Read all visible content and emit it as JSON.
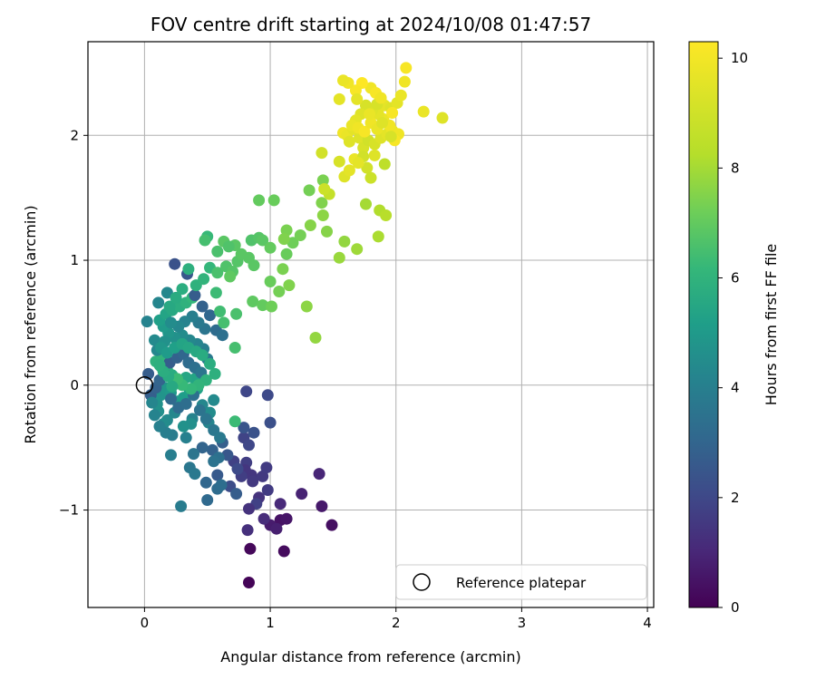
{
  "chart_data": {
    "type": "scatter",
    "title": "FOV centre drift starting at 2024/10/08 01:47:57",
    "xlabel": "Angular distance from reference (arcmin)",
    "ylabel": "Rotation from reference (arcmin)",
    "xlim": [
      -0.45,
      4.05
    ],
    "ylim": [
      -1.78,
      2.75
    ],
    "xticks": [
      0,
      1,
      2,
      3,
      4
    ],
    "yticks": [
      -1,
      0,
      1,
      2
    ],
    "grid": true,
    "legend": {
      "position": "bottom-right",
      "entries": [
        "Reference platepar"
      ]
    },
    "reference_point": {
      "x": 0,
      "y": 0
    },
    "colorbar": {
      "label": "Hours from first FF file",
      "colormap": "viridis",
      "range": [
        0,
        10.3
      ],
      "ticks": [
        0,
        2,
        4,
        6,
        8,
        10
      ]
    },
    "points": [
      [
        0.83,
        -1.58,
        0.1
      ],
      [
        0.84,
        -1.31,
        0.2
      ],
      [
        1.11,
        -1.33,
        0.3
      ],
      [
        1.49,
        -1.12,
        0.4
      ],
      [
        1.08,
        -1.08,
        0.5
      ],
      [
        1.13,
        -1.07,
        0.6
      ],
      [
        1.41,
        -0.97,
        0.7
      ],
      [
        1.0,
        -1.12,
        0.8
      ],
      [
        1.05,
        -1.15,
        0.9
      ],
      [
        1.25,
        -0.87,
        1.0
      ],
      [
        1.39,
        -0.71,
        1.1
      ],
      [
        1.08,
        -0.95,
        1.2
      ],
      [
        0.95,
        -1.07,
        1.3
      ],
      [
        0.82,
        -1.16,
        1.4
      ],
      [
        0.91,
        -0.9,
        1.5
      ],
      [
        0.85,
        -0.72,
        1.6
      ],
      [
        0.94,
        -0.73,
        1.7
      ],
      [
        0.98,
        -0.84,
        1.8
      ],
      [
        0.81,
        -0.62,
        1.9
      ],
      [
        0.89,
        -0.95,
        2.0
      ],
      [
        0.83,
        -0.99,
        1.5
      ],
      [
        0.8,
        -0.68,
        1.6
      ],
      [
        0.86,
        -0.77,
        1.7
      ],
      [
        0.97,
        -0.66,
        1.8
      ],
      [
        0.77,
        -0.73,
        1.9
      ],
      [
        0.71,
        -0.61,
        2.0
      ],
      [
        0.79,
        -0.42,
        2.1
      ],
      [
        0.83,
        -0.48,
        2.2
      ],
      [
        0.74,
        -0.67,
        2.3
      ],
      [
        0.68,
        -0.81,
        2.4
      ],
      [
        0.81,
        -0.05,
        2.2
      ],
      [
        0.98,
        -0.08,
        2.3
      ],
      [
        1.0,
        -0.3,
        2.5
      ],
      [
        0.87,
        -0.38,
        2.6
      ],
      [
        0.79,
        -0.34,
        2.7
      ],
      [
        0.66,
        -0.56,
        2.8
      ],
      [
        0.58,
        -0.72,
        2.9
      ],
      [
        0.73,
        -0.87,
        3.0
      ],
      [
        0.62,
        -0.46,
        3.1
      ],
      [
        0.54,
        -0.52,
        3.2
      ],
      [
        0.46,
        -0.5,
        3.3
      ],
      [
        0.49,
        -0.78,
        3.4
      ],
      [
        0.5,
        -0.92,
        3.5
      ],
      [
        0.58,
        -0.83,
        3.6
      ],
      [
        0.61,
        -0.8,
        3.7
      ],
      [
        0.59,
        -0.58,
        3.8
      ],
      [
        0.55,
        -0.61,
        3.9
      ],
      [
        0.39,
        -0.55,
        4.0
      ],
      [
        0.36,
        -0.66,
        4.1
      ],
      [
        0.4,
        -0.71,
        4.2
      ],
      [
        0.29,
        -0.97,
        4.3
      ],
      [
        0.21,
        -0.56,
        4.4
      ],
      [
        0.33,
        -0.42,
        4.5
      ],
      [
        0.38,
        -0.27,
        4.6
      ],
      [
        0.51,
        -0.3,
        4.7
      ],
      [
        0.46,
        -0.16,
        4.8
      ],
      [
        0.55,
        -0.12,
        4.9
      ],
      [
        0.52,
        -0.22,
        5.0
      ],
      [
        0.37,
        -0.31,
        5.1
      ],
      [
        0.31,
        -0.33,
        5.2
      ],
      [
        0.24,
        -0.22,
        4.8
      ],
      [
        0.18,
        -0.28,
        4.9
      ],
      [
        0.15,
        -0.31,
        5.0
      ],
      [
        0.11,
        -0.21,
        5.1
      ],
      [
        0.1,
        -0.15,
        5.2
      ],
      [
        0.13,
        -0.08,
        5.3
      ],
      [
        0.16,
        -0.02,
        5.4
      ],
      [
        0.21,
        -0.06,
        5.5
      ],
      [
        0.26,
        -0.13,
        5.6
      ],
      [
        0.31,
        -0.1,
        5.7
      ],
      [
        0.36,
        -0.05,
        5.8
      ],
      [
        0.42,
        -0.03,
        5.9
      ],
      [
        0.4,
        0.05,
        6.0
      ],
      [
        0.33,
        0.06,
        6.1
      ],
      [
        0.28,
        0.02,
        6.2
      ],
      [
        0.22,
        0.08,
        6.3
      ],
      [
        0.18,
        0.12,
        6.4
      ],
      [
        0.13,
        0.15,
        6.5
      ],
      [
        0.09,
        0.19,
        6.6
      ],
      [
        0.14,
        0.22,
        6.7
      ],
      [
        0.2,
        0.18,
        3.0
      ],
      [
        0.26,
        0.22,
        3.2
      ],
      [
        0.31,
        0.25,
        3.4
      ],
      [
        0.35,
        0.18,
        3.6
      ],
      [
        0.4,
        0.14,
        3.8
      ],
      [
        0.45,
        0.1,
        4.0
      ],
      [
        0.5,
        0.21,
        4.2
      ],
      [
        0.47,
        0.29,
        4.4
      ],
      [
        0.42,
        0.33,
        4.6
      ],
      [
        0.36,
        0.36,
        4.8
      ],
      [
        0.3,
        0.4,
        5.0
      ],
      [
        0.24,
        0.38,
        5.2
      ],
      [
        0.19,
        0.42,
        5.4
      ],
      [
        0.15,
        0.47,
        5.6
      ],
      [
        0.12,
        0.52,
        5.8
      ],
      [
        0.17,
        0.57,
        6.0
      ],
      [
        0.22,
        0.6,
        6.2
      ],
      [
        0.28,
        0.63,
        6.4
      ],
      [
        0.33,
        0.66,
        6.6
      ],
      [
        0.38,
        0.7,
        6.8
      ],
      [
        0.03,
        0.09,
        3.0
      ],
      [
        0.05,
        -0.08,
        3.1
      ],
      [
        0.09,
        -0.02,
        3.2
      ],
      [
        0.12,
        0.04,
        3.3
      ],
      [
        0.16,
        0.09,
        3.4
      ],
      [
        0.21,
        -0.11,
        3.5
      ],
      [
        0.27,
        -0.18,
        3.6
      ],
      [
        0.33,
        -0.15,
        3.7
      ],
      [
        0.39,
        -0.08,
        3.8
      ],
      [
        0.44,
        -0.2,
        3.9
      ],
      [
        0.49,
        -0.27,
        4.0
      ],
      [
        0.55,
        -0.36,
        4.1
      ],
      [
        0.6,
        -0.42,
        4.2
      ],
      [
        0.22,
        -0.4,
        4.3
      ],
      [
        0.17,
        -0.38,
        4.4
      ],
      [
        0.12,
        -0.33,
        4.5
      ],
      [
        0.08,
        -0.24,
        4.6
      ],
      [
        0.06,
        -0.14,
        4.7
      ],
      [
        0.1,
        0.28,
        4.8
      ],
      [
        0.08,
        0.36,
        4.9
      ],
      [
        0.02,
        0.51,
        4.6
      ],
      [
        0.11,
        0.66,
        4.7
      ],
      [
        0.18,
        0.74,
        4.8
      ],
      [
        0.24,
        0.97,
        2.6
      ],
      [
        0.34,
        0.89,
        2.8
      ],
      [
        0.4,
        0.72,
        3.0
      ],
      [
        0.46,
        0.63,
        3.2
      ],
      [
        0.52,
        0.56,
        3.4
      ],
      [
        0.57,
        0.44,
        3.6
      ],
      [
        0.62,
        0.4,
        3.8
      ],
      [
        0.48,
        0.45,
        4.0
      ],
      [
        0.43,
        0.5,
        4.2
      ],
      [
        0.38,
        0.55,
        4.4
      ],
      [
        0.32,
        0.51,
        4.6
      ],
      [
        0.27,
        0.47,
        4.8
      ],
      [
        0.21,
        0.5,
        5.0
      ],
      [
        0.16,
        0.35,
        5.2
      ],
      [
        0.13,
        0.3,
        5.4
      ],
      [
        0.18,
        0.26,
        5.6
      ],
      [
        0.24,
        0.3,
        5.8
      ],
      [
        0.3,
        0.33,
        6.0
      ],
      [
        0.35,
        0.3,
        6.1
      ],
      [
        0.41,
        0.27,
        6.2
      ],
      [
        0.46,
        0.24,
        6.3
      ],
      [
        0.52,
        0.17,
        6.4
      ],
      [
        0.56,
        0.09,
        6.5
      ],
      [
        0.49,
        0.04,
        6.6
      ],
      [
        0.43,
        0.0,
        6.7
      ],
      [
        0.37,
        -0.03,
        6.8
      ],
      [
        0.3,
        0.0,
        6.9
      ],
      [
        0.26,
        0.05,
        7.0
      ],
      [
        0.22,
        -0.01,
        6.2
      ],
      [
        0.19,
        0.07,
        6.3
      ],
      [
        0.15,
        0.11,
        6.4
      ],
      [
        0.12,
        0.16,
        6.5
      ],
      [
        0.2,
        0.63,
        6.2
      ],
      [
        0.25,
        0.7,
        6.3
      ],
      [
        0.3,
        0.77,
        6.4
      ],
      [
        0.35,
        0.93,
        6.5
      ],
      [
        0.41,
        0.8,
        6.6
      ],
      [
        0.47,
        0.85,
        6.7
      ],
      [
        0.52,
        0.94,
        6.8
      ],
      [
        0.5,
        1.19,
        6.9
      ],
      [
        0.57,
        0.74,
        7.0
      ],
      [
        0.6,
        0.59,
        7.1
      ],
      [
        0.63,
        0.5,
        7.2
      ],
      [
        0.58,
        0.9,
        7.3
      ],
      [
        0.65,
        0.95,
        7.4
      ],
      [
        0.7,
        0.91,
        7.5
      ],
      [
        0.74,
        0.99,
        7.5
      ],
      [
        0.77,
        1.05,
        7.6
      ],
      [
        0.83,
        1.02,
        7.6
      ],
      [
        0.87,
        0.96,
        7.6
      ],
      [
        0.72,
        1.12,
        7.6
      ],
      [
        0.63,
        1.15,
        7.6
      ],
      [
        0.67,
        1.11,
        7.4
      ],
      [
        0.68,
        0.87,
        7.7
      ],
      [
        0.73,
        0.57,
        7.3
      ],
      [
        0.72,
        0.3,
        7.2
      ],
      [
        0.72,
        -0.29,
        7.0
      ],
      [
        0.48,
        1.16,
        7.2
      ],
      [
        0.58,
        1.07,
        7.3
      ],
      [
        0.85,
        1.16,
        7.4
      ],
      [
        0.91,
        1.18,
        7.5
      ],
      [
        0.94,
        1.16,
        7.6
      ],
      [
        0.86,
        0.67,
        7.7
      ],
      [
        0.94,
        0.64,
        7.8
      ],
      [
        1.0,
        0.83,
        7.9
      ],
      [
        1.01,
        0.63,
        8.0
      ],
      [
        1.07,
        0.75,
        8.1
      ],
      [
        1.1,
        0.93,
        8.2
      ],
      [
        1.15,
        0.8,
        8.3
      ],
      [
        1.0,
        1.1,
        7.8
      ],
      [
        1.13,
        1.05,
        7.9
      ],
      [
        1.18,
        1.14,
        8.0
      ],
      [
        1.24,
        1.2,
        8.1
      ],
      [
        1.13,
        1.24,
        8.2
      ],
      [
        1.11,
        1.17,
        8.3
      ],
      [
        1.32,
        1.28,
        8.4
      ],
      [
        1.29,
        0.63,
        8.5
      ],
      [
        1.36,
        0.38,
        8.6
      ],
      [
        0.91,
        1.48,
        7.8
      ],
      [
        1.03,
        1.48,
        7.9
      ],
      [
        1.31,
        1.56,
        8.1
      ],
      [
        1.42,
        1.64,
        8.2
      ],
      [
        1.41,
        1.46,
        8.3
      ],
      [
        1.45,
        1.23,
        8.4
      ],
      [
        1.42,
        1.36,
        8.5
      ],
      [
        1.59,
        1.15,
        8.6
      ],
      [
        1.55,
        1.02,
        8.7
      ],
      [
        1.69,
        1.09,
        8.8
      ],
      [
        1.76,
        1.45,
        8.9
      ],
      [
        1.86,
        1.19,
        9.0
      ],
      [
        1.87,
        1.4,
        9.1
      ],
      [
        1.92,
        1.36,
        9.2
      ],
      [
        1.91,
        1.77,
        9.3
      ],
      [
        1.47,
        1.53,
        9.4
      ],
      [
        1.43,
        1.57,
        9.5
      ],
      [
        1.41,
        1.86,
        9.6
      ],
      [
        1.55,
        1.79,
        9.7
      ],
      [
        1.59,
        1.67,
        9.8
      ],
      [
        1.63,
        1.72,
        9.9
      ],
      [
        1.67,
        1.81,
        10.0
      ],
      [
        1.58,
        2.02,
        10.1
      ],
      [
        1.61,
        2.0,
        10.0
      ],
      [
        1.66,
        2.05,
        9.9
      ],
      [
        1.71,
        1.98,
        9.8
      ],
      [
        1.74,
        1.9,
        9.7
      ],
      [
        1.78,
        1.96,
        9.6
      ],
      [
        1.83,
        1.93,
        9.7
      ],
      [
        1.88,
        1.98,
        9.8
      ],
      [
        1.93,
        2.01,
        9.9
      ],
      [
        1.97,
        2.04,
        10.0
      ],
      [
        2.02,
        2.01,
        10.1
      ],
      [
        1.99,
        1.96,
        10.2
      ],
      [
        1.95,
        2.08,
        10.1
      ],
      [
        1.9,
        2.13,
        10.0
      ],
      [
        1.86,
        2.17,
        9.9
      ],
      [
        1.81,
        2.2,
        9.8
      ],
      [
        1.76,
        2.24,
        9.7
      ],
      [
        1.72,
        2.17,
        9.8
      ],
      [
        1.68,
        2.12,
        9.9
      ],
      [
        1.65,
        2.08,
        10.0
      ],
      [
        1.7,
        2.06,
        10.1
      ],
      [
        1.75,
        2.03,
        10.2
      ],
      [
        1.8,
        2.1,
        10.1
      ],
      [
        1.85,
        2.05,
        10.0
      ],
      [
        1.91,
        2.24,
        9.9
      ],
      [
        1.96,
        2.22,
        9.8
      ],
      [
        2.01,
        2.26,
        9.9
      ],
      [
        2.04,
        2.32,
        10.0
      ],
      [
        1.8,
        2.38,
        10.1
      ],
      [
        1.84,
        2.34,
        10.2
      ],
      [
        1.73,
        2.42,
        10.3
      ],
      [
        1.68,
        2.36,
        10.2
      ],
      [
        1.62,
        2.42,
        10.1
      ],
      [
        1.58,
        2.44,
        10.0
      ],
      [
        1.55,
        2.29,
        9.9
      ],
      [
        1.89,
        2.1,
        9.8
      ],
      [
        2.07,
        2.43,
        10.1
      ],
      [
        2.08,
        2.54,
        10.2
      ],
      [
        2.22,
        2.19,
        10.0
      ],
      [
        2.37,
        2.14,
        9.8
      ],
      [
        1.96,
        1.99,
        9.7
      ],
      [
        1.77,
        1.74,
        9.6
      ],
      [
        1.8,
        1.66,
        9.5
      ],
      [
        1.74,
        1.83,
        9.6
      ],
      [
        1.85,
        2.25,
        9.7
      ],
      [
        1.63,
        1.95,
        9.8
      ],
      [
        1.69,
        2.29,
        9.9
      ],
      [
        1.79,
        2.17,
        10.0
      ],
      [
        1.88,
        2.3,
        10.1
      ],
      [
        1.97,
        2.18,
        10.2
      ],
      [
        1.83,
        1.84,
        9.8
      ],
      [
        1.7,
        1.78,
        9.9
      ]
    ]
  }
}
